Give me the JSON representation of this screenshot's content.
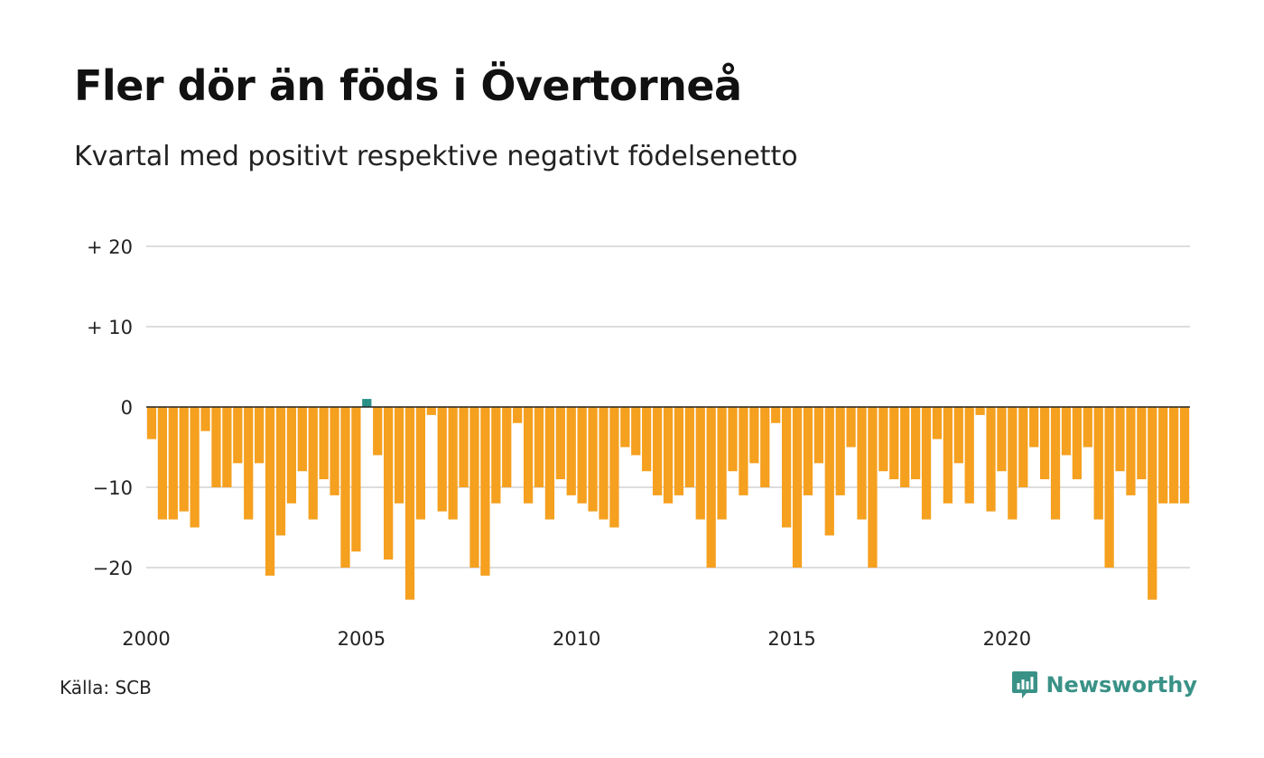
{
  "title": "Fler dör än föds i Övertorneå",
  "subtitle": "Kvartal med positivt respektive negativt födelsenetto",
  "source": "Källa: SCB",
  "brand": {
    "name": "Newsworthy",
    "icon": "newsworthy-logo-icon",
    "color": "#3a9287"
  },
  "chart_data": {
    "type": "bar",
    "title": "Fler dör än föds i Övertorneå",
    "subtitle": "Kvartal med positivt respektive negativt födelsenetto",
    "xlabel": "",
    "ylabel": "",
    "x_start": 2000,
    "x_end": 2024.25,
    "x_tick_values": [
      2000,
      2005,
      2010,
      2015,
      2020
    ],
    "x_tick_labels": [
      "2000",
      "2005",
      "2010",
      "2015",
      "2020"
    ],
    "ylim": [
      -26,
      20
    ],
    "y_tick_values": [
      20,
      10,
      0,
      -10,
      -20
    ],
    "y_tick_labels": [
      "+ 20",
      "+ 10",
      "0",
      "−10",
      "−20"
    ],
    "grid": true,
    "colors": {
      "negative": "#f5a01f",
      "positive": "#2a9187",
      "grid": "#dddddd",
      "zero": "#222222"
    },
    "categories": [
      "2000 K1",
      "2000 K2",
      "2000 K3",
      "2000 K4",
      "2001 K1",
      "2001 K2",
      "2001 K3",
      "2001 K4",
      "2002 K1",
      "2002 K2",
      "2002 K3",
      "2002 K4",
      "2003 K1",
      "2003 K2",
      "2003 K3",
      "2003 K4",
      "2004 K1",
      "2004 K2",
      "2004 K3",
      "2004 K4",
      "2005 K1",
      "2005 K2",
      "2005 K3",
      "2005 K4",
      "2006 K1",
      "2006 K2",
      "2006 K3",
      "2006 K4",
      "2007 K1",
      "2007 K2",
      "2007 K3",
      "2007 K4",
      "2008 K1",
      "2008 K2",
      "2008 K3",
      "2008 K4",
      "2009 K1",
      "2009 K2",
      "2009 K3",
      "2009 K4",
      "2010 K1",
      "2010 K2",
      "2010 K3",
      "2010 K4",
      "2011 K1",
      "2011 K2",
      "2011 K3",
      "2011 K4",
      "2012 K1",
      "2012 K2",
      "2012 K3",
      "2012 K4",
      "2013 K1",
      "2013 K2",
      "2013 K3",
      "2013 K4",
      "2014 K1",
      "2014 K2",
      "2014 K3",
      "2014 K4",
      "2015 K1",
      "2015 K2",
      "2015 K3",
      "2015 K4",
      "2016 K1",
      "2016 K2",
      "2016 K3",
      "2016 K4",
      "2017 K1",
      "2017 K2",
      "2017 K3",
      "2017 K4",
      "2018 K1",
      "2018 K2",
      "2018 K3",
      "2018 K4",
      "2019 K1",
      "2019 K2",
      "2019 K3",
      "2019 K4",
      "2020 K1",
      "2020 K2",
      "2020 K3",
      "2020 K4",
      "2021 K1",
      "2021 K2",
      "2021 K3",
      "2021 K4",
      "2022 K1",
      "2022 K2",
      "2022 K3",
      "2022 K4",
      "2023 K1",
      "2023 K2",
      "2023 K3",
      "2023 K4",
      "2024 K1"
    ],
    "values": [
      -4,
      -14,
      -14,
      -13,
      -15,
      -3,
      -10,
      -10,
      -7,
      -14,
      -7,
      -21,
      -16,
      -12,
      -8,
      -14,
      -9,
      -11,
      -20,
      -18,
      1,
      -6,
      -19,
      -12,
      -24,
      -14,
      -1,
      -13,
      -14,
      -10,
      -20,
      -21,
      -12,
      -10,
      -2,
      -12,
      -10,
      -14,
      -9,
      -11,
      -12,
      -13,
      -14,
      -15,
      -5,
      -6,
      -8,
      -11,
      -12,
      -11,
      -10,
      -14,
      -20,
      -14,
      -8,
      -11,
      -7,
      -10,
      -2,
      -15,
      -20,
      -11,
      -7,
      -16,
      -11,
      -5,
      -14,
      -20,
      -8,
      -9,
      -10,
      -9,
      -14,
      -4,
      -12,
      -7,
      -12,
      -1,
      -13,
      -8,
      -14,
      -10,
      -5,
      -9,
      -14,
      -6,
      -9,
      -5,
      -14,
      -20,
      -8,
      -11,
      -9,
      -24,
      -12,
      -12,
      -12
    ]
  }
}
